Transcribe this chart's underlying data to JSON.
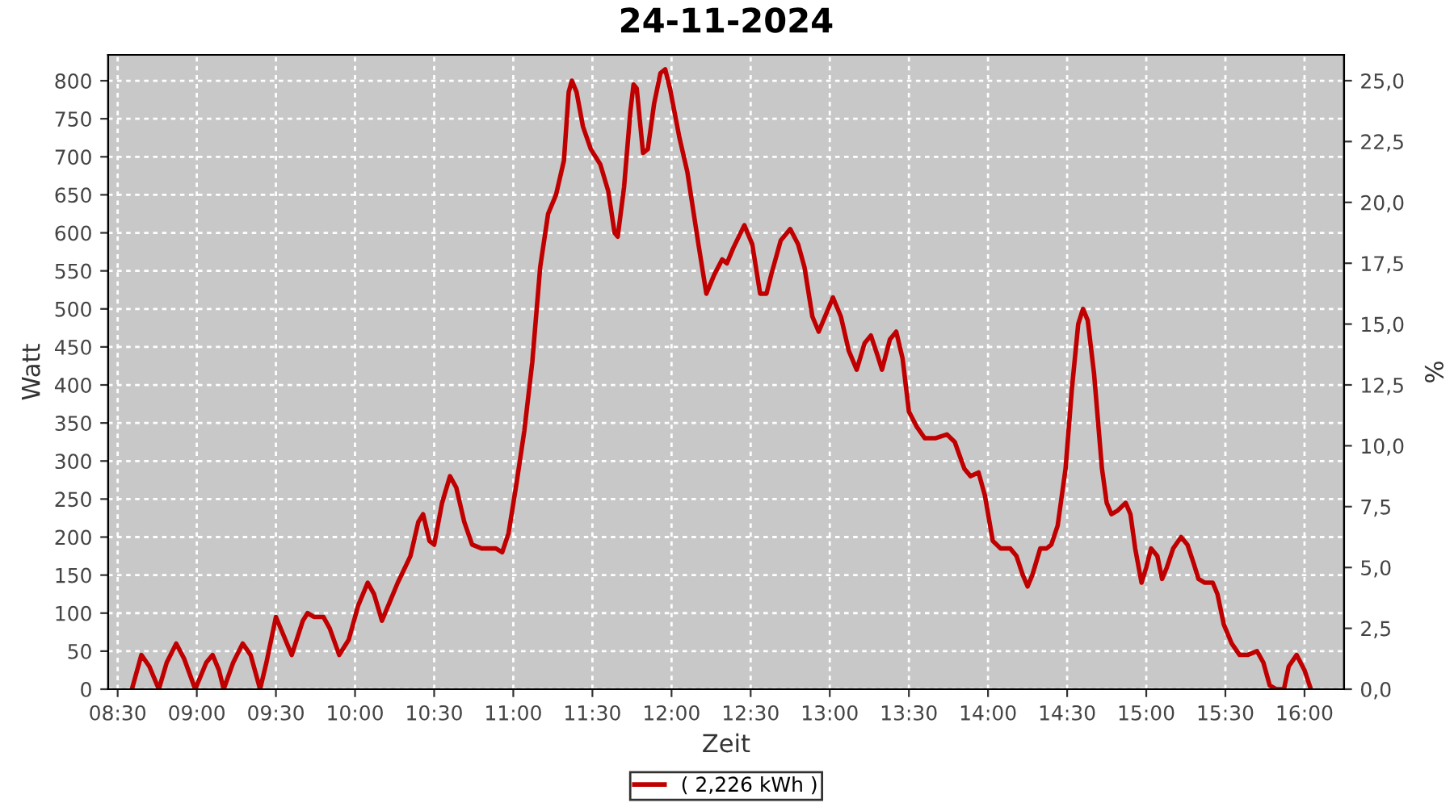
{
  "chart_data": {
    "type": "line",
    "title": "24-11-2024",
    "xlabel": "Zeit",
    "ylabel": "Watt",
    "y2label": "%",
    "series": [
      {
        "name": "( 2,226 kWh )",
        "color": "#c00000",
        "x": [
          8.59,
          8.65,
          8.7,
          8.76,
          8.81,
          8.87,
          8.92,
          8.99,
          9.06,
          9.1,
          9.14,
          9.17,
          9.23,
          9.29,
          9.34,
          9.4,
          9.44,
          9.5,
          9.56,
          9.6,
          9.67,
          9.7,
          9.74,
          9.8,
          9.84,
          9.9,
          9.96,
          10.02,
          10.08,
          10.12,
          10.17,
          10.22,
          10.27,
          10.35,
          10.4,
          10.43,
          10.47,
          10.5,
          10.55,
          10.6,
          10.64,
          10.69,
          10.74,
          10.8,
          10.89,
          10.93,
          10.97,
          11.02,
          11.07,
          11.12,
          11.17,
          11.22,
          11.27,
          11.32,
          11.35,
          11.37,
          11.4,
          11.44,
          11.49,
          11.55,
          11.6,
          11.64,
          11.66,
          11.7,
          11.74,
          11.76,
          11.78,
          11.82,
          11.85,
          11.89,
          11.93,
          11.96,
          11.99,
          12.05,
          12.1,
          12.17,
          12.22,
          12.27,
          12.32,
          12.35,
          12.39,
          12.46,
          12.51,
          12.56,
          12.6,
          12.63,
          12.69,
          12.75,
          12.8,
          12.84,
          12.89,
          12.93,
          12.97,
          13.02,
          13.07,
          13.12,
          13.17,
          13.22,
          13.26,
          13.3,
          13.33,
          13.38,
          13.42,
          13.46,
          13.5,
          13.55,
          13.6,
          13.67,
          13.74,
          13.79,
          13.85,
          13.89,
          13.94,
          13.98,
          14.03,
          14.08,
          14.14,
          14.18,
          14.22,
          14.25,
          14.28,
          14.33,
          14.37,
          14.4,
          14.44,
          14.49,
          14.53,
          14.57,
          14.6,
          14.63,
          14.67,
          14.72,
          14.75,
          14.78,
          14.82,
          14.87,
          14.9,
          14.93,
          14.97,
          15.0,
          15.03,
          15.07,
          15.1,
          15.13,
          15.17,
          15.22,
          15.26,
          15.3,
          15.33,
          15.37,
          15.42,
          15.45,
          15.49,
          15.54,
          15.59,
          15.64,
          15.7,
          15.74,
          15.78,
          15.82,
          15.87,
          15.9,
          15.95,
          16.0,
          16.04
        ],
        "values": [
          0,
          45,
          30,
          0,
          35,
          60,
          40,
          0,
          35,
          45,
          25,
          0,
          35,
          60,
          45,
          0,
          35,
          95,
          65,
          45,
          90,
          100,
          95,
          95,
          80,
          45,
          65,
          110,
          140,
          125,
          90,
          115,
          140,
          175,
          220,
          230,
          195,
          190,
          245,
          280,
          265,
          220,
          190,
          185,
          185,
          180,
          205,
          270,
          340,
          430,
          555,
          625,
          650,
          695,
          785,
          800,
          785,
          740,
          710,
          690,
          655,
          600,
          595,
          660,
          760,
          795,
          790,
          705,
          710,
          770,
          810,
          815,
          790,
          725,
          680,
          585,
          520,
          545,
          565,
          560,
          580,
          610,
          585,
          520,
          520,
          545,
          590,
          605,
          585,
          555,
          490,
          470,
          490,
          515,
          490,
          445,
          420,
          455,
          465,
          440,
          420,
          460,
          470,
          435,
          365,
          345,
          330,
          330,
          335,
          325,
          290,
          280,
          285,
          255,
          195,
          185,
          185,
          175,
          150,
          135,
          150,
          185,
          185,
          190,
          215,
          290,
          395,
          480,
          500,
          485,
          415,
          290,
          245,
          230,
          235,
          245,
          230,
          185,
          140,
          160,
          185,
          175,
          145,
          160,
          185,
          200,
          190,
          165,
          145,
          140,
          140,
          125,
          85,
          60,
          45,
          45,
          50,
          35,
          5,
          0,
          0,
          30,
          45,
          25,
          0
        ]
      }
    ],
    "xlim": [
      8.44,
      16.25
    ],
    "xticks": [
      {
        "value": 8.5,
        "label": "08:30"
      },
      {
        "value": 9,
        "label": "09:00"
      },
      {
        "value": 9.5,
        "label": "09:30"
      },
      {
        "value": 10,
        "label": "10:00"
      },
      {
        "value": 10.5,
        "label": "10:30"
      },
      {
        "value": 11,
        "label": "11:00"
      },
      {
        "value": 11.5,
        "label": "11:30"
      },
      {
        "value": 12,
        "label": "12:00"
      },
      {
        "value": 12.5,
        "label": "12:30"
      },
      {
        "value": 13,
        "label": "13:00"
      },
      {
        "value": 13.5,
        "label": "13:30"
      },
      {
        "value": 14,
        "label": "14:00"
      },
      {
        "value": 14.5,
        "label": "14:30"
      },
      {
        "value": 15,
        "label": "15:00"
      },
      {
        "value": 15.5,
        "label": "15:30"
      },
      {
        "value": 16,
        "label": "16:00"
      }
    ],
    "ylim": [
      0,
      834
    ],
    "yticks": [
      0,
      50,
      100,
      150,
      200,
      250,
      300,
      350,
      400,
      450,
      500,
      550,
      600,
      650,
      700,
      750,
      800
    ],
    "y2lim": [
      0,
      26.06
    ],
    "y2ticks": [
      {
        "value": 0,
        "label": "0,0"
      },
      {
        "value": 2.5,
        "label": "2,5"
      },
      {
        "value": 5,
        "label": "5,0"
      },
      {
        "value": 7.5,
        "label": "7,5"
      },
      {
        "value": 10,
        "label": "10,0"
      },
      {
        "value": 12.5,
        "label": "12,5"
      },
      {
        "value": 15,
        "label": "15,0"
      },
      {
        "value": 17.5,
        "label": "17,5"
      },
      {
        "value": 20,
        "label": "20,0"
      },
      {
        "value": 22.5,
        "label": "22,5"
      },
      {
        "value": 25,
        "label": "25,0"
      }
    ],
    "grid": true,
    "legend": "bottom",
    "marker": "none",
    "line_style": "solid"
  }
}
